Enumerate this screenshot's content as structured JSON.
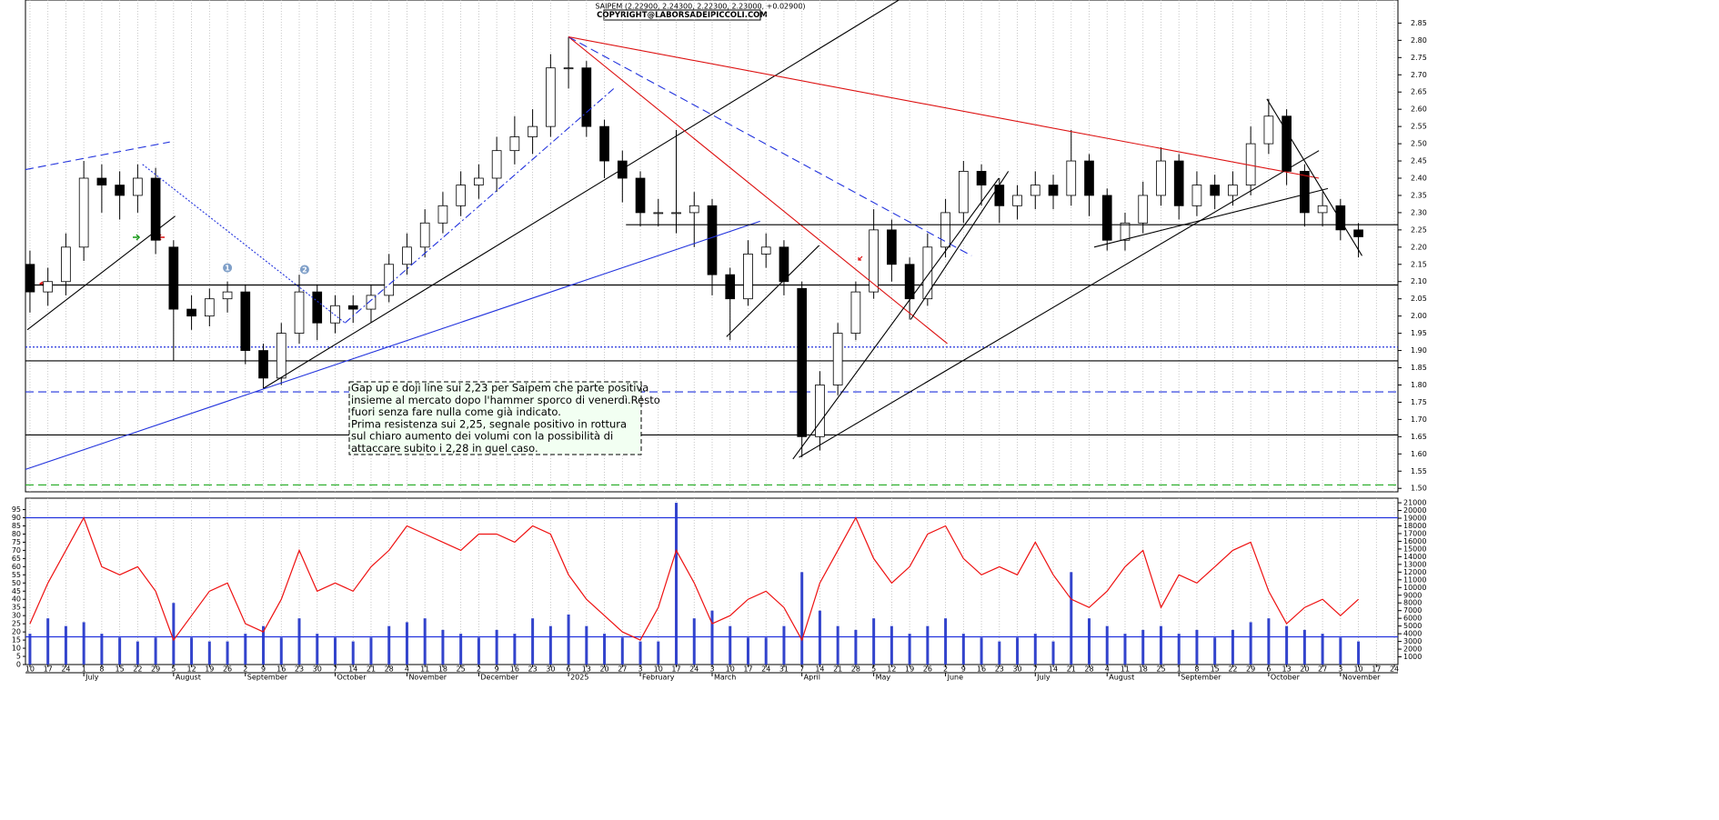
{
  "chart_data": {
    "type": "candlestick",
    "title": "SAIPEM (2.22900, 2.24300, 2.22300, 2.23000, +0.02900)",
    "copyright": "COPYRIGHT@LABORSADEIPICCOLI.COM",
    "categories": [
      "10",
      "17",
      "24",
      "1",
      "8",
      "15",
      "22",
      "29",
      "5",
      "12",
      "19",
      "26",
      "2",
      "9",
      "16",
      "23",
      "30",
      "7",
      "14",
      "21",
      "28",
      "4",
      "11",
      "18",
      "25",
      "2",
      "9",
      "16",
      "23",
      "30",
      "6",
      "13",
      "20",
      "27",
      "3",
      "10",
      "17",
      "24",
      "3",
      "10",
      "17",
      "24",
      "31",
      "7",
      "14",
      "21",
      "28",
      "5",
      "12",
      "19",
      "26",
      "2",
      "9",
      "16",
      "23",
      "30",
      "7",
      "14",
      "21",
      "28",
      "4",
      "11",
      "18",
      "25",
      "1",
      "8",
      "15",
      "22",
      "29",
      "6",
      "13",
      "20",
      "27",
      "3",
      "10",
      "17",
      "24"
    ],
    "month_labels": [
      {
        "label": "July",
        "index": 3
      },
      {
        "label": "August",
        "index": 8
      },
      {
        "label": "September",
        "index": 12
      },
      {
        "label": "October",
        "index": 17
      },
      {
        "label": "November",
        "index": 21
      },
      {
        "label": "December",
        "index": 25
      },
      {
        "label": "2025",
        "index": 30
      },
      {
        "label": "February",
        "index": 34
      },
      {
        "label": "March",
        "index": 38
      },
      {
        "label": "April",
        "index": 43
      },
      {
        "label": "May",
        "index": 47
      },
      {
        "label": "June",
        "index": 51
      },
      {
        "label": "July",
        "index": 56
      },
      {
        "label": "August",
        "index": 60
      },
      {
        "label": "September",
        "index": 64
      },
      {
        "label": "October",
        "index": 69
      },
      {
        "label": "November",
        "index": 73
      }
    ],
    "xlim": [
      -0.25,
      76.2
    ],
    "grid": "x",
    "open": [
      2.15,
      2.07,
      2.1,
      2.2,
      2.4,
      2.38,
      2.35,
      2.4,
      2.2,
      2.02,
      2.0,
      2.05,
      2.07,
      1.9,
      1.82,
      1.95,
      2.07,
      1.98,
      2.03,
      2.02,
      2.06,
      2.15,
      2.2,
      2.27,
      2.32,
      2.38,
      2.4,
      2.48,
      2.52,
      2.55,
      2.72,
      2.72,
      2.55,
      2.45,
      2.4,
      2.3,
      2.3,
      2.3,
      2.32,
      2.12,
      2.05,
      2.18,
      2.2,
      2.08,
      1.65,
      1.8,
      1.95,
      2.07,
      2.25,
      2.15,
      2.05,
      2.2,
      2.3,
      2.42,
      2.38,
      2.32,
      2.35,
      2.38,
      2.35,
      2.45,
      2.35,
      2.22,
      2.27,
      2.35,
      2.45,
      2.32,
      2.38,
      2.35,
      2.38,
      2.5,
      2.58,
      2.42,
      2.3,
      2.32,
      2.25,
      null,
      null
    ],
    "high": [
      2.19,
      2.14,
      2.24,
      2.45,
      2.44,
      2.42,
      2.44,
      2.43,
      2.22,
      2.06,
      2.08,
      2.1,
      2.09,
      1.92,
      1.98,
      2.12,
      2.09,
      2.06,
      2.06,
      2.09,
      2.18,
      2.24,
      2.31,
      2.36,
      2.42,
      2.44,
      2.52,
      2.58,
      2.6,
      2.76,
      2.81,
      2.74,
      2.57,
      2.48,
      2.42,
      2.34,
      2.54,
      2.36,
      2.34,
      2.14,
      2.22,
      2.24,
      2.22,
      2.1,
      1.84,
      1.98,
      2.1,
      2.31,
      2.28,
      2.17,
      2.24,
      2.34,
      2.45,
      2.44,
      2.4,
      2.38,
      2.42,
      2.41,
      2.54,
      2.47,
      2.37,
      2.3,
      2.39,
      2.49,
      2.47,
      2.42,
      2.41,
      2.42,
      2.55,
      2.63,
      2.6,
      2.44,
      2.36,
      2.34,
      2.27,
      null,
      null
    ],
    "low": [
      2.01,
      2.03,
      2.06,
      2.16,
      2.3,
      2.28,
      2.3,
      2.18,
      1.87,
      1.96,
      1.97,
      2.01,
      1.86,
      1.79,
      1.8,
      1.92,
      1.93,
      1.95,
      1.98,
      1.98,
      2.04,
      2.12,
      2.17,
      2.24,
      2.29,
      2.34,
      2.36,
      2.44,
      2.47,
      2.52,
      2.66,
      2.52,
      2.4,
      2.33,
      2.26,
      2.26,
      2.24,
      2.2,
      2.06,
      1.93,
      2.03,
      2.14,
      2.06,
      1.59,
      1.61,
      1.77,
      1.93,
      2.05,
      2.1,
      1.99,
      2.03,
      2.17,
      2.27,
      2.32,
      2.27,
      2.28,
      2.31,
      2.31,
      2.32,
      2.29,
      2.19,
      2.19,
      2.24,
      2.32,
      2.28,
      2.29,
      2.31,
      2.32,
      2.35,
      2.47,
      2.38,
      2.26,
      2.26,
      2.22,
      2.17,
      null,
      null
    ],
    "close": [
      2.07,
      2.1,
      2.2,
      2.4,
      2.38,
      2.35,
      2.4,
      2.22,
      2.02,
      2.0,
      2.05,
      2.07,
      1.9,
      1.82,
      1.95,
      2.07,
      1.98,
      2.03,
      2.02,
      2.06,
      2.15,
      2.2,
      2.27,
      2.32,
      2.38,
      2.4,
      2.48,
      2.52,
      2.55,
      2.72,
      2.72,
      2.55,
      2.45,
      2.4,
      2.3,
      2.3,
      2.3,
      2.32,
      2.12,
      2.05,
      2.18,
      2.2,
      2.1,
      1.65,
      1.8,
      1.95,
      2.07,
      2.25,
      2.15,
      2.05,
      2.2,
      2.3,
      2.42,
      2.38,
      2.32,
      2.35,
      2.38,
      2.35,
      2.45,
      2.35,
      2.22,
      2.27,
      2.35,
      2.45,
      2.32,
      2.38,
      2.35,
      2.38,
      2.5,
      2.58,
      2.42,
      2.3,
      2.32,
      2.25,
      2.23,
      null,
      null
    ],
    "ylim": [
      1.49,
      2.917
    ],
    "yticks": [
      {
        "value": 1.5,
        "label": "1.50"
      },
      {
        "value": 1.55,
        "label": "1.55"
      },
      {
        "value": 1.6,
        "label": "1.60"
      },
      {
        "value": 1.65,
        "label": "1.65"
      },
      {
        "value": 1.7,
        "label": "1.70"
      },
      {
        "value": 1.75,
        "label": "1.75"
      },
      {
        "value": 1.8,
        "label": "1.80"
      },
      {
        "value": 1.85,
        "label": "1.85"
      },
      {
        "value": 1.9,
        "label": "1.90"
      },
      {
        "value": 1.95,
        "label": "1.95"
      },
      {
        "value": 2.0,
        "label": "2.00"
      },
      {
        "value": 2.05,
        "label": "2.05"
      },
      {
        "value": 2.1,
        "label": "2.10"
      },
      {
        "value": 2.15,
        "label": "2.15"
      },
      {
        "value": 2.2,
        "label": "2.20"
      },
      {
        "value": 2.25,
        "label": "2.25"
      },
      {
        "value": 2.3,
        "label": "2.30"
      },
      {
        "value": 2.35,
        "label": "2.35"
      },
      {
        "value": 2.4,
        "label": "2.40"
      },
      {
        "value": 2.45,
        "label": "2.45"
      },
      {
        "value": 2.5,
        "label": "2.50"
      },
      {
        "value": 2.55,
        "label": "2.55"
      },
      {
        "value": 2.6,
        "label": "2.60"
      },
      {
        "value": 2.65,
        "label": "2.65"
      },
      {
        "value": 2.7,
        "label": "2.70"
      },
      {
        "value": 2.75,
        "label": "2.75"
      },
      {
        "value": 2.8,
        "label": "2.80"
      },
      {
        "value": 2.85,
        "label": "2.85"
      }
    ],
    "hlines": [
      {
        "value": 2.09,
        "color": "#000000",
        "style": "solid"
      },
      {
        "value": 1.91,
        "color": "#2233dd",
        "style": "dotted"
      },
      {
        "value": 1.87,
        "color": "#000000",
        "style": "solid"
      },
      {
        "value": 1.78,
        "color": "#2233dd",
        "style": "dashed"
      },
      {
        "value": 1.655,
        "color": "#000000",
        "style": "solid"
      },
      {
        "value": 1.51,
        "color": "#22aa22",
        "style": "dashed"
      }
    ],
    "trendlines": [
      {
        "x": [
          -0.25,
          7.79
        ],
        "y": [
          2.425,
          2.505
        ],
        "color": "#2233dd",
        "style": "dashed"
      },
      {
        "x": [
          -0.15,
          8.09
        ],
        "y": [
          1.96,
          2.29
        ],
        "color": "#000000",
        "style": "solid"
      },
      {
        "x": [
          6.27,
          17.55
        ],
        "y": [
          2.44,
          1.98
        ],
        "color": "#2233dd",
        "style": "dotted"
      },
      {
        "x": [
          17.55,
          32.52
        ],
        "y": [
          1.98,
          2.66
        ],
        "color": "#2233dd",
        "style": "dashdot"
      },
      {
        "x": [
          13.0,
          48.4
        ],
        "y": [
          1.79,
          2.917
        ],
        "color": "#000000",
        "style": "solid"
      },
      {
        "x": [
          -0.25,
          40.67
        ],
        "y": [
          1.555,
          2.275
        ],
        "color": "#2233dd",
        "style": "solid"
      },
      {
        "x": [
          30.0,
          51.1
        ],
        "y": [
          2.81,
          1.92
        ],
        "color": "#dd1111",
        "style": "solid"
      },
      {
        "x": [
          30.0,
          52.45
        ],
        "y": [
          2.81,
          2.175
        ],
        "color": "#2233dd",
        "style": "dashed"
      },
      {
        "x": [
          30.0,
          71.8
        ],
        "y": [
          2.81,
          2.4
        ],
        "color": "#dd1111",
        "style": "solid"
      },
      {
        "x": [
          38.8,
          43.96
        ],
        "y": [
          1.94,
          2.205
        ],
        "color": "#000000",
        "style": "solid"
      },
      {
        "x": [
          42.5,
          53.97
        ],
        "y": [
          1.585,
          2.4
        ],
        "color": "#000000",
        "style": "solid"
      },
      {
        "x": [
          49.06,
          54.5
        ],
        "y": [
          1.99,
          2.42
        ],
        "color": "#000000",
        "style": "solid"
      },
      {
        "x": [
          42.84,
          71.8
        ],
        "y": [
          1.59,
          2.48
        ],
        "color": "#000000",
        "style": "solid"
      },
      {
        "x": [
          59.28,
          72.3
        ],
        "y": [
          2.2,
          2.37
        ],
        "color": "#000000",
        "style": "solid"
      },
      {
        "x": [
          68.9,
          74.2
        ],
        "y": [
          2.63,
          2.175
        ],
        "color": "#000000",
        "style": "solid"
      },
      {
        "x": [
          33.2,
          76.2
        ],
        "y": [
          2.265,
          2.265
        ],
        "color": "#000000",
        "style": "solid"
      }
    ],
    "markers": [
      {
        "label": "1",
        "index": 11.0,
        "value": 2.14
      },
      {
        "label": "2",
        "index": 15.3,
        "value": 2.135
      }
    ],
    "annotation": {
      "lines": [
        "Gap up e doji line sui 2,23 per  Saipem che parte positiva",
        "insieme al mercato dopo l'hammer sporco di venerdì.Resto",
        "fuori senza fare nulla come già indicato.",
        "Prima resistenza sui 2,25, segnale positivo in rottura",
        "sul chiaro aumento dei volumi con la possibilità di",
        "attaccare subito i 2,28 in quel caso."
      ]
    },
    "rsi": {
      "color": "#ee1111",
      "values": [
        25,
        50,
        70,
        90,
        60,
        55,
        60,
        45,
        15,
        30,
        45,
        50,
        25,
        20,
        40,
        70,
        45,
        50,
        45,
        60,
        70,
        85,
        80,
        75,
        70,
        80,
        80,
        75,
        85,
        80,
        55,
        40,
        30,
        20,
        15,
        35,
        70,
        50,
        25,
        30,
        40,
        45,
        35,
        15,
        50,
        70,
        90,
        65,
        50,
        60,
        80,
        85,
        65,
        55,
        60,
        55,
        75,
        55,
        40,
        35,
        45,
        60,
        70,
        35,
        55,
        50,
        60,
        70,
        75,
        45,
        25,
        35,
        40,
        30,
        40,
        null,
        null
      ],
      "ylim": [
        0,
        102
      ],
      "yticks": [
        0,
        5,
        10,
        15,
        20,
        25,
        30,
        35,
        40,
        45,
        50,
        55,
        60,
        65,
        70,
        75,
        80,
        85,
        90,
        95
      ],
      "levels": [
        90,
        17
      ],
      "level_color": "#2233dd"
    },
    "volume": {
      "color": "#3344cc",
      "values": [
        4000,
        6000,
        5000,
        5500,
        4000,
        3500,
        3000,
        3500,
        8000,
        3500,
        3000,
        3000,
        4000,
        5000,
        3500,
        6000,
        4000,
        3500,
        3000,
        3500,
        5000,
        5500,
        6000,
        4500,
        4000,
        3500,
        4500,
        4000,
        6000,
        5000,
        6500,
        5000,
        4000,
        3500,
        3000,
        3000,
        21000,
        6000,
        7000,
        5000,
        3500,
        3500,
        5000,
        12000,
        7000,
        5000,
        4500,
        6000,
        5000,
        4000,
        5000,
        6000,
        4000,
        3500,
        3000,
        3500,
        4000,
        3000,
        12000,
        6000,
        5000,
        4000,
        4500,
        5000,
        4000,
        4500,
        3500,
        4500,
        5500,
        6000,
        5000,
        4500,
        4000,
        3500,
        3000,
        null,
        null
      ],
      "ylim": [
        0,
        21600
      ],
      "yticks": [
        1000,
        2000,
        3000,
        4000,
        5000,
        6000,
        7000,
        8000,
        9000,
        10000,
        11000,
        12000,
        13000,
        14000,
        15000,
        16000,
        17000,
        18000,
        19000,
        20000,
        21000
      ]
    }
  }
}
